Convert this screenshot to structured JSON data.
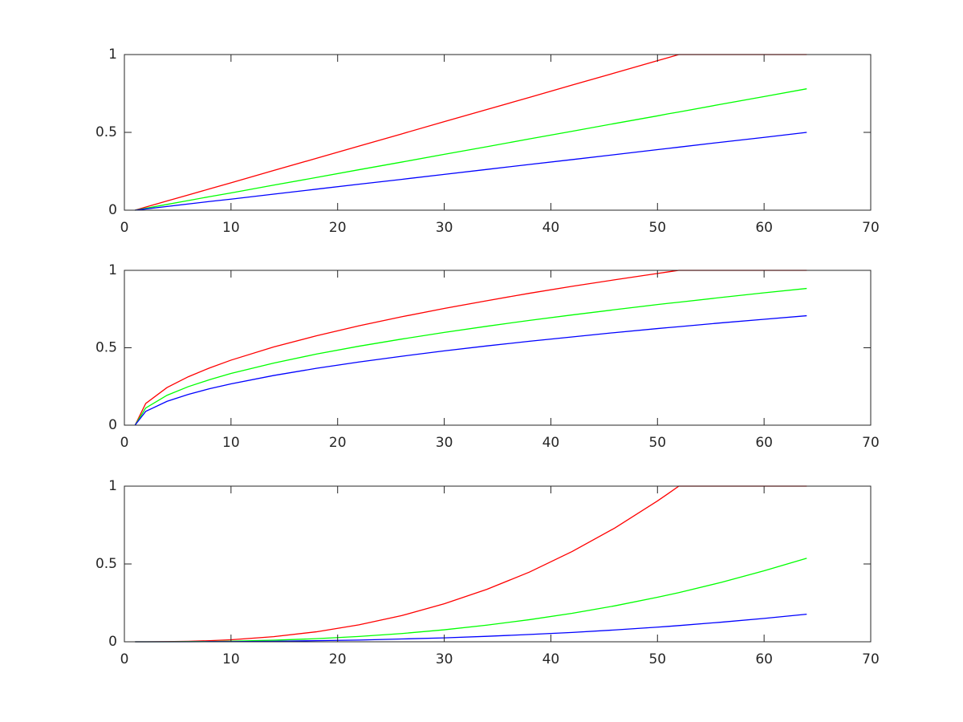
{
  "chart_data": [
    {
      "type": "line",
      "xlim": [
        0,
        70
      ],
      "ylim": [
        0,
        1
      ],
      "xticks": [
        0,
        10,
        20,
        30,
        40,
        50,
        60,
        70
      ],
      "yticks": [
        0,
        0.5,
        1
      ],
      "x": [
        1,
        2,
        4,
        6,
        8,
        10,
        14,
        18,
        22,
        26,
        30,
        34,
        38,
        42,
        46,
        50,
        51,
        52,
        56,
        60,
        64
      ],
      "series": [
        {
          "color": "#ff0000",
          "values": [
            0,
            0.02,
            0.059,
            0.098,
            0.137,
            0.176,
            0.255,
            0.333,
            0.412,
            0.49,
            0.569,
            0.647,
            0.725,
            0.804,
            0.882,
            0.961,
            0.98,
            1,
            1,
            1,
            1
          ]
        },
        {
          "color": "#00ff00",
          "values": [
            0,
            0.012,
            0.037,
            0.062,
            0.087,
            0.111,
            0.161,
            0.21,
            0.26,
            0.309,
            0.359,
            0.408,
            0.458,
            0.507,
            0.557,
            0.606,
            0.619,
            0.631,
            0.681,
            0.73,
            0.78
          ]
        },
        {
          "color": "#0000ff",
          "values": [
            0,
            0.008,
            0.024,
            0.04,
            0.056,
            0.071,
            0.103,
            0.135,
            0.167,
            0.198,
            0.23,
            0.262,
            0.294,
            0.325,
            0.357,
            0.389,
            0.397,
            0.405,
            0.437,
            0.468,
            0.5
          ]
        }
      ]
    },
    {
      "type": "line",
      "xlim": [
        0,
        70
      ],
      "ylim": [
        0,
        1
      ],
      "xticks": [
        0,
        10,
        20,
        30,
        40,
        50,
        60,
        70
      ],
      "yticks": [
        0,
        0.5,
        1
      ],
      "x": [
        1,
        2,
        4,
        6,
        8,
        10,
        14,
        18,
        22,
        26,
        30,
        34,
        38,
        42,
        46,
        50,
        51,
        52,
        56,
        60,
        64
      ],
      "series": [
        {
          "color": "#ff0000",
          "values": [
            0,
            0.14,
            0.243,
            0.313,
            0.37,
            0.42,
            0.505,
            0.577,
            0.642,
            0.7,
            0.754,
            0.804,
            0.852,
            0.897,
            0.939,
            0.98,
            0.99,
            1,
            1,
            1,
            1
          ]
        },
        {
          "color": "#00ff00",
          "values": [
            0,
            0.111,
            0.193,
            0.249,
            0.294,
            0.334,
            0.401,
            0.459,
            0.51,
            0.556,
            0.599,
            0.639,
            0.677,
            0.712,
            0.746,
            0.779,
            0.787,
            0.794,
            0.825,
            0.855,
            0.883
          ]
        },
        {
          "color": "#0000ff",
          "values": [
            0,
            0.089,
            0.154,
            0.199,
            0.236,
            0.267,
            0.321,
            0.367,
            0.408,
            0.445,
            0.48,
            0.512,
            0.542,
            0.57,
            0.598,
            0.624,
            0.63,
            0.636,
            0.661,
            0.684,
            0.707
          ]
        }
      ]
    },
    {
      "type": "line",
      "xlim": [
        0,
        70
      ],
      "ylim": [
        0,
        1
      ],
      "xticks": [
        0,
        10,
        20,
        30,
        40,
        50,
        60,
        70
      ],
      "yticks": [
        0,
        0.5,
        1
      ],
      "x": [
        1,
        2,
        4,
        6,
        8,
        10,
        14,
        18,
        22,
        26,
        30,
        34,
        38,
        42,
        46,
        50,
        51,
        52,
        56,
        60,
        64
      ],
      "series": [
        {
          "color": "#ff0000",
          "values": [
            0,
            0,
            0.001,
            0.003,
            0.007,
            0.013,
            0.033,
            0.064,
            0.109,
            0.168,
            0.244,
            0.337,
            0.448,
            0.58,
            0.731,
            0.905,
            0.952,
            1,
            1,
            1,
            1
          ]
        },
        {
          "color": "#00ff00",
          "values": [
            0,
            0,
            0,
            0.001,
            0.002,
            0.004,
            0.01,
            0.02,
            0.034,
            0.053,
            0.077,
            0.107,
            0.142,
            0.183,
            0.231,
            0.286,
            0.301,
            0.316,
            0.382,
            0.456,
            0.537
          ]
        },
        {
          "color": "#0000ff",
          "values": [
            0,
            0,
            0,
            0,
            0.001,
            0.001,
            0.003,
            0.007,
            0.011,
            0.018,
            0.025,
            0.035,
            0.047,
            0.06,
            0.076,
            0.094,
            0.099,
            0.104,
            0.126,
            0.15,
            0.177
          ]
        }
      ]
    }
  ]
}
